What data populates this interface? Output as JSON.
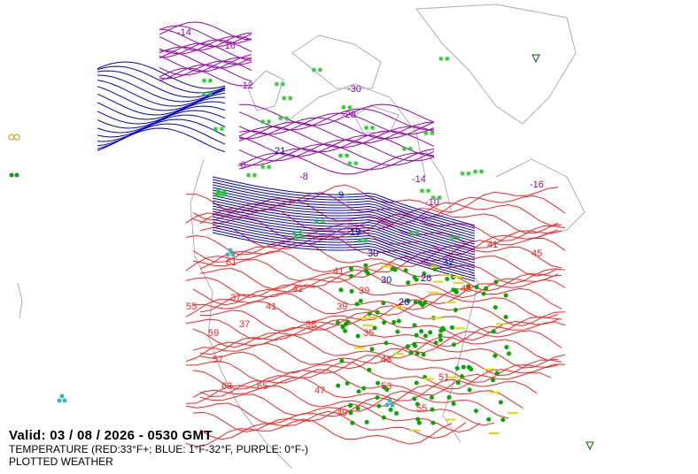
{
  "valid_line": "Valid: 03 / 08 / 2026  -  0530 GMT",
  "legend_temperature": "TEMPERATURE (RED:33°F+; BLUE: 1°F-32°F, PURPLE: 0°F-)",
  "legend_weather": "PLOTTED WEATHER",
  "colors": {
    "warm": "#ff2020",
    "cold": "#0000cc",
    "frigid": "#9900aa",
    "coastline": "#a8acc0",
    "rain": "#00aa00",
    "snow": "#22cc22",
    "fog": "#dddd00",
    "hail": "#33bbbb"
  },
  "contour_labels": [
    {
      "text": "-14",
      "type": "frigid"
    },
    {
      "text": "-16",
      "type": "frigid"
    },
    {
      "text": "-12",
      "type": "frigid"
    },
    {
      "text": "-30",
      "type": "frigid"
    },
    {
      "text": "-28",
      "type": "frigid"
    },
    {
      "text": "-8",
      "type": "frigid"
    },
    {
      "text": "-6",
      "type": "frigid"
    },
    {
      "text": "-10",
      "type": "frigid"
    },
    {
      "text": "-14",
      "type": "frigid"
    },
    {
      "text": "-16",
      "type": "frigid"
    },
    {
      "text": "9",
      "type": "cold"
    },
    {
      "text": "19",
      "type": "cold"
    },
    {
      "text": "30",
      "type": "cold"
    },
    {
      "text": "28",
      "type": "cold"
    },
    {
      "text": "26",
      "type": "cold"
    },
    {
      "text": "32",
      "type": "cold"
    },
    {
      "text": "21",
      "type": "cold"
    },
    {
      "text": "30",
      "type": "cold"
    },
    {
      "text": "41",
      "type": "warm"
    },
    {
      "text": "39",
      "type": "warm"
    },
    {
      "text": "42",
      "type": "warm"
    },
    {
      "text": "35",
      "type": "warm"
    },
    {
      "text": "38",
      "type": "warm"
    },
    {
      "text": "41",
      "type": "warm"
    },
    {
      "text": "37",
      "type": "warm"
    },
    {
      "text": "43",
      "type": "warm"
    },
    {
      "text": "45",
      "type": "warm"
    },
    {
      "text": "47",
      "type": "warm"
    },
    {
      "text": "49",
      "type": "warm"
    },
    {
      "text": "51",
      "type": "warm"
    },
    {
      "text": "53",
      "type": "warm"
    },
    {
      "text": "55",
      "type": "warm"
    },
    {
      "text": "57",
      "type": "warm"
    },
    {
      "text": "59",
      "type": "warm"
    },
    {
      "text": "61",
      "type": "warm"
    },
    {
      "text": "63",
      "type": "warm"
    },
    {
      "text": "65",
      "type": "warm"
    },
    {
      "text": "41",
      "type": "warm"
    },
    {
      "text": "45",
      "type": "warm"
    },
    {
      "text": "39",
      "type": "warm"
    },
    {
      "text": "37",
      "type": "warm"
    },
    {
      "text": "55",
      "type": "warm"
    }
  ]
}
